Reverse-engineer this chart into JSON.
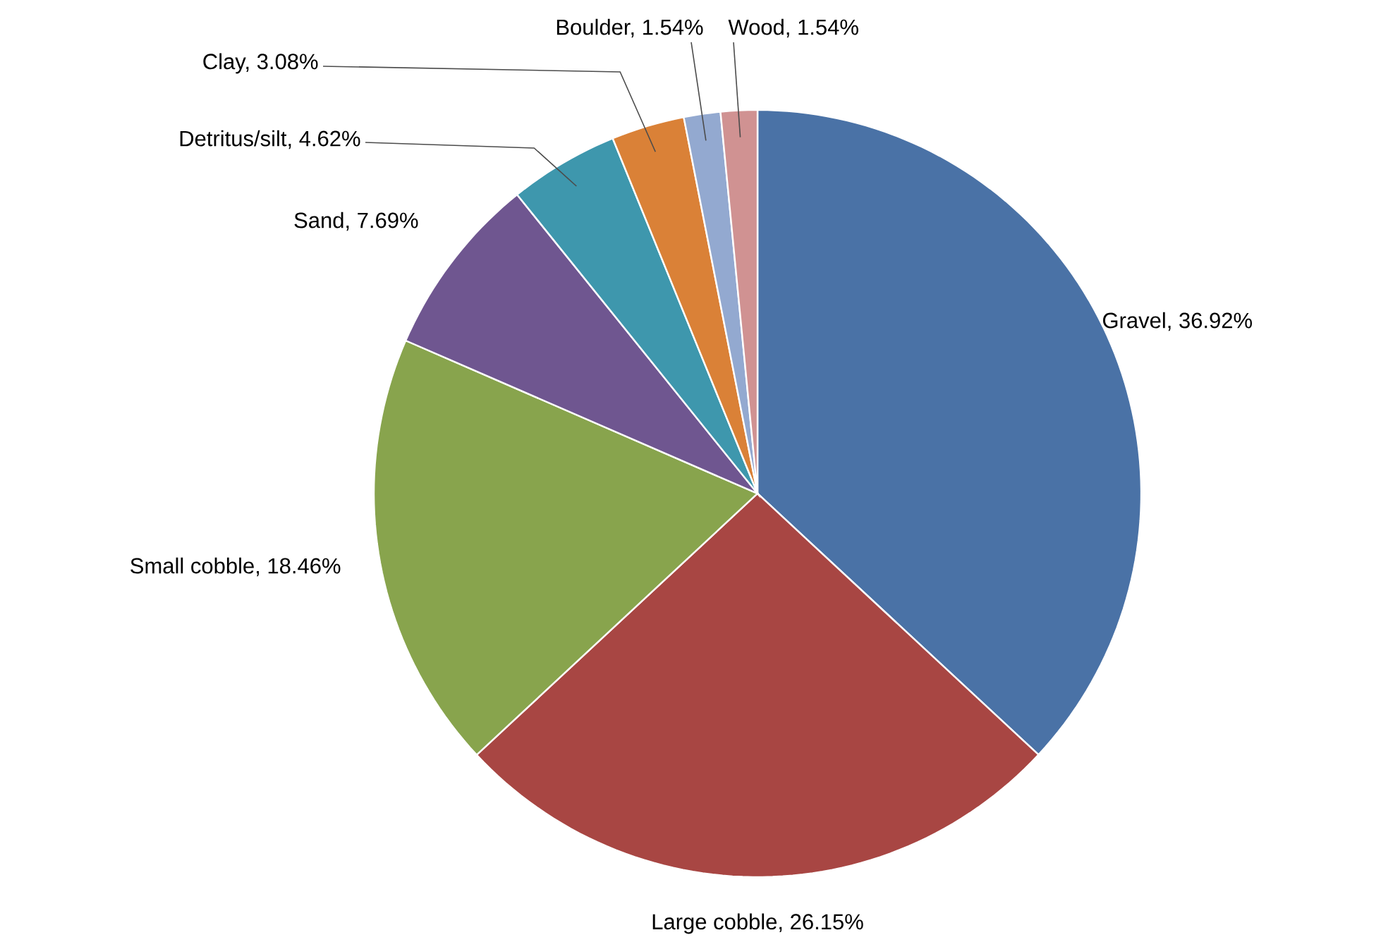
{
  "chart_data": {
    "type": "pie",
    "categories": [
      "Gravel, 36.92%",
      "Large cobble, 26.15%",
      "Small cobble, 18.46%",
      "Sand, 7.69%",
      "Detritus/silt, 4.62%",
      "Clay, 3.08%",
      "Boulder, 1.54%",
      "Wood, 1.54%"
    ],
    "values": [
      36.92,
      26.15,
      18.46,
      7.69,
      4.62,
      3.08,
      1.54,
      1.54
    ],
    "colors": [
      "#4a72a6",
      "#a84643",
      "#88a44d",
      "#6f5690",
      "#3e97ad",
      "#da8137",
      "#93a9d0",
      "#d09292"
    ]
  }
}
